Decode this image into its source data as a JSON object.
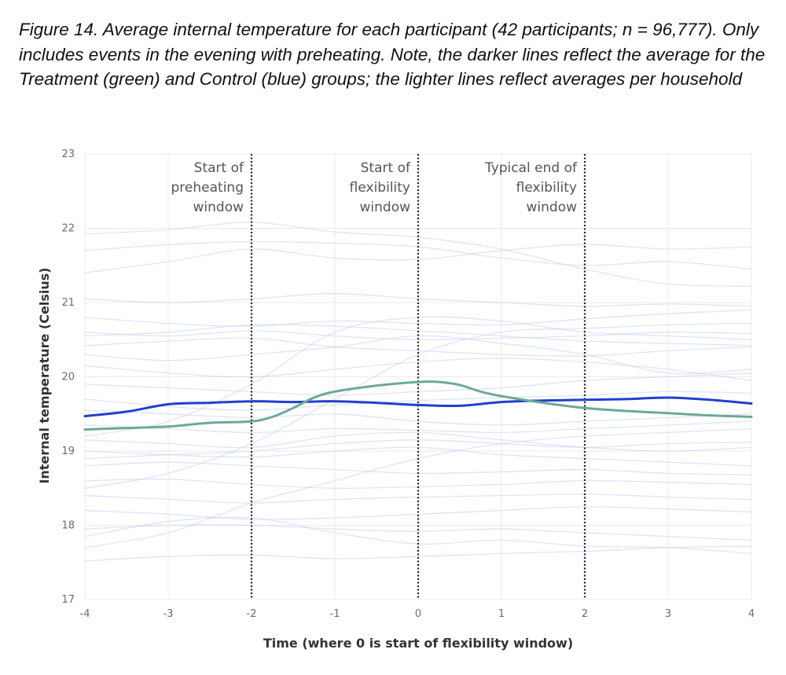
{
  "caption": "Figure 14. Average internal temperature for each participant (42 participants; n = 96,777). Only includes events in the evening with preheating. Note, the darker lines reflect the average for the Treatment (green) and Control (blue) groups; the lighter lines reflect averages per household",
  "chart_data": {
    "type": "line",
    "xlabel": "Time (where 0 is start of flexibility window)",
    "ylabel": "Internal temperature (Celsius)",
    "xlim": [
      -4,
      4
    ],
    "ylim": [
      17,
      23
    ],
    "x_ticks": [
      "-4",
      "-3",
      "-2",
      "-1",
      "0",
      "1",
      "2",
      "3",
      "4"
    ],
    "y_ticks": [
      "17",
      "18",
      "19",
      "20",
      "21",
      "22",
      "23"
    ],
    "grid": true,
    "colors": {
      "treatment": "#6aaa96",
      "control": "#1f3fd1",
      "household": "#c5cdf0"
    },
    "annotations": [
      {
        "x": -2,
        "label_lines": [
          "Start of",
          "preheating",
          "window"
        ]
      },
      {
        "x": 0,
        "label_lines": [
          "Start of",
          "flexibility",
          "window"
        ]
      },
      {
        "x": 2,
        "label_lines": [
          "Typical end of",
          "flexibility",
          "window"
        ]
      }
    ],
    "series": [
      {
        "name": "Control average",
        "x": [
          -4,
          -3.5,
          -3,
          -2.5,
          -2,
          -1.5,
          -1,
          -0.5,
          0,
          0.5,
          1,
          1.5,
          2,
          2.5,
          3,
          3.5,
          4
        ],
        "values": [
          19.47,
          19.53,
          19.63,
          19.65,
          19.67,
          19.66,
          19.67,
          19.65,
          19.62,
          19.61,
          19.66,
          19.68,
          19.69,
          19.7,
          19.72,
          19.69,
          19.64
        ]
      },
      {
        "name": "Treatment average",
        "x": [
          -4,
          -3.5,
          -3,
          -2.5,
          -2,
          -1.75,
          -1.5,
          -1.25,
          -1,
          -0.5,
          0,
          0.25,
          0.5,
          0.75,
          1,
          1.5,
          2,
          2.5,
          3,
          3.5,
          4
        ],
        "values": [
          19.29,
          19.31,
          19.33,
          19.38,
          19.4,
          19.46,
          19.58,
          19.72,
          19.8,
          19.88,
          19.93,
          19.93,
          19.89,
          19.8,
          19.74,
          19.65,
          19.58,
          19.54,
          19.51,
          19.48,
          19.46
        ]
      }
    ],
    "household_series": [
      {
        "x": [
          -4,
          -3,
          -2,
          -1,
          0,
          1,
          2,
          3,
          4
        ],
        "values": [
          21.92,
          21.98,
          22.08,
          21.95,
          21.88,
          21.72,
          21.45,
          21.25,
          21.22
        ]
      },
      {
        "x": [
          -4,
          -3,
          -2,
          -1,
          0,
          1,
          2,
          3,
          4
        ],
        "values": [
          21.7,
          21.78,
          21.82,
          21.8,
          21.75,
          21.6,
          21.5,
          21.55,
          21.45
        ]
      },
      {
        "x": [
          -4,
          -3,
          -2,
          -1,
          0,
          1,
          2,
          3,
          4
        ],
        "values": [
          21.4,
          21.55,
          21.72,
          21.6,
          21.58,
          21.7,
          21.78,
          21.72,
          21.75
        ]
      },
      {
        "x": [
          -4,
          -3,
          -2,
          -1,
          0,
          1,
          2,
          3,
          4
        ],
        "values": [
          21.05,
          21.0,
          21.05,
          21.12,
          21.05,
          21.0,
          20.95,
          20.98,
          20.95
        ]
      },
      {
        "x": [
          -4,
          -3,
          -2,
          -1,
          0,
          1,
          2,
          3,
          4
        ],
        "values": [
          20.8,
          20.72,
          20.68,
          20.75,
          20.72,
          20.7,
          20.78,
          20.85,
          20.9
        ]
      },
      {
        "x": [
          -4,
          -3,
          -2,
          -1,
          0,
          1,
          2,
          3,
          4
        ],
        "values": [
          20.6,
          20.55,
          20.62,
          20.55,
          20.5,
          20.52,
          20.55,
          20.6,
          20.58
        ]
      },
      {
        "x": [
          -4,
          -3,
          -2,
          -1,
          0,
          1,
          2,
          3,
          4
        ],
        "values": [
          20.42,
          20.48,
          20.52,
          20.4,
          20.35,
          20.3,
          20.28,
          20.35,
          20.4
        ]
      },
      {
        "x": [
          -4,
          -3,
          -2,
          -1,
          0,
          1,
          2,
          3,
          4
        ],
        "values": [
          20.3,
          20.22,
          20.3,
          20.4,
          20.55,
          20.45,
          20.3,
          20.05,
          20.1
        ]
      },
      {
        "x": [
          -4,
          -3,
          -2,
          -1,
          0,
          1,
          2,
          3,
          4
        ],
        "values": [
          20.15,
          20.05,
          20.0,
          20.1,
          20.2,
          20.25,
          20.2,
          20.1,
          19.95
        ]
      },
      {
        "x": [
          -4,
          -3,
          -2,
          -1,
          0,
          1,
          2,
          3,
          4
        ],
        "values": [
          19.9,
          19.85,
          19.8,
          19.75,
          19.8,
          19.85,
          19.95,
          20.0,
          20.05
        ]
      },
      {
        "x": [
          -4,
          -3,
          -2,
          -1,
          0,
          1,
          2,
          3,
          4
        ],
        "values": [
          19.55,
          19.5,
          19.45,
          19.5,
          19.4,
          19.35,
          19.4,
          19.45,
          19.5
        ]
      },
      {
        "x": [
          -4,
          -3,
          -2,
          -1,
          0,
          1,
          2,
          3,
          4
        ],
        "values": [
          19.35,
          19.3,
          19.25,
          19.3,
          19.28,
          19.25,
          19.3,
          19.35,
          19.4
        ]
      },
      {
        "x": [
          -4,
          -3,
          -2,
          -1,
          0,
          1,
          2,
          3,
          4
        ],
        "values": [
          19.15,
          19.1,
          19.05,
          19.2,
          19.25,
          19.15,
          19.05,
          19.0,
          19.05
        ]
      },
      {
        "x": [
          -4,
          -3,
          -2,
          -1,
          0,
          1,
          2,
          3,
          4
        ],
        "values": [
          19.0,
          18.95,
          18.92,
          19.0,
          19.05,
          18.95,
          18.9,
          18.85,
          18.8
        ]
      },
      {
        "x": [
          -4,
          -3,
          -2,
          -1,
          0,
          1,
          2,
          3,
          4
        ],
        "values": [
          18.8,
          18.85,
          18.8,
          18.75,
          18.7,
          18.72,
          18.75,
          18.7,
          18.68
        ]
      },
      {
        "x": [
          -4,
          -3,
          -2,
          -1,
          0,
          1,
          2,
          3,
          4
        ],
        "values": [
          18.6,
          18.62,
          18.55,
          18.5,
          18.52,
          18.55,
          18.6,
          18.58,
          18.55
        ]
      },
      {
        "x": [
          -4,
          -3,
          -2,
          -1,
          0,
          1,
          2,
          3,
          4
        ],
        "values": [
          18.4,
          18.35,
          18.3,
          18.35,
          18.38,
          18.4,
          18.42,
          18.38,
          18.35
        ]
      },
      {
        "x": [
          -4,
          -3,
          -2,
          -1,
          0,
          1,
          2,
          3,
          4
        ],
        "values": [
          18.2,
          18.15,
          18.08,
          18.1,
          18.15,
          18.2,
          18.25,
          18.22,
          18.18
        ]
      },
      {
        "x": [
          -4,
          -3,
          -2,
          -1,
          0,
          1,
          2,
          3,
          4
        ],
        "values": [
          17.95,
          18.0,
          18.0,
          17.95,
          17.92,
          17.95,
          17.9,
          17.85,
          17.8
        ]
      },
      {
        "x": [
          -4,
          -3,
          -2,
          -1,
          0,
          1,
          2,
          3,
          4
        ],
        "values": [
          17.85,
          18.05,
          18.1,
          17.9,
          17.75,
          17.8,
          17.72,
          17.7,
          17.62
        ]
      },
      {
        "x": [
          -4,
          -3,
          -2,
          -1,
          0,
          1,
          2,
          3,
          4
        ],
        "values": [
          17.52,
          17.58,
          17.6,
          17.55,
          17.58,
          17.62,
          17.65,
          17.7,
          17.72
        ]
      },
      {
        "x": [
          -4,
          -3,
          -2,
          -1,
          0,
          1,
          2,
          3,
          4
        ],
        "values": [
          19.7,
          19.6,
          19.55,
          19.62,
          19.68,
          19.72,
          19.75,
          19.8,
          19.78
        ]
      },
      {
        "x": [
          -4,
          -3,
          -2,
          -1,
          0,
          1,
          2,
          3,
          4
        ],
        "values": [
          18.5,
          18.7,
          19.1,
          19.7,
          20.3,
          20.6,
          20.65,
          20.7,
          20.72
        ]
      },
      {
        "x": [
          -4,
          -3,
          -2,
          -1,
          0,
          1,
          2,
          3,
          4
        ],
        "values": [
          19.2,
          19.4,
          19.9,
          20.6,
          20.8,
          20.75,
          20.6,
          20.55,
          20.5
        ]
      },
      {
        "x": [
          -4,
          -3,
          -2,
          -1,
          0,
          1,
          2,
          3,
          4
        ],
        "values": [
          17.7,
          17.9,
          18.3,
          18.6,
          18.9,
          19.1,
          19.2,
          19.25,
          19.3
        ]
      },
      {
        "x": [
          -4,
          -3,
          -2,
          -1,
          0,
          1,
          2,
          3,
          4
        ],
        "values": [
          18.9,
          18.95,
          19.0,
          19.1,
          19.15,
          19.1,
          19.05,
          19.1,
          19.12
        ]
      },
      {
        "x": [
          -4,
          -3,
          -2,
          -1,
          0,
          1,
          2,
          3,
          4
        ],
        "values": [
          20.55,
          20.6,
          20.7,
          20.68,
          20.62,
          20.55,
          20.48,
          20.45,
          20.42
        ]
      }
    ]
  }
}
